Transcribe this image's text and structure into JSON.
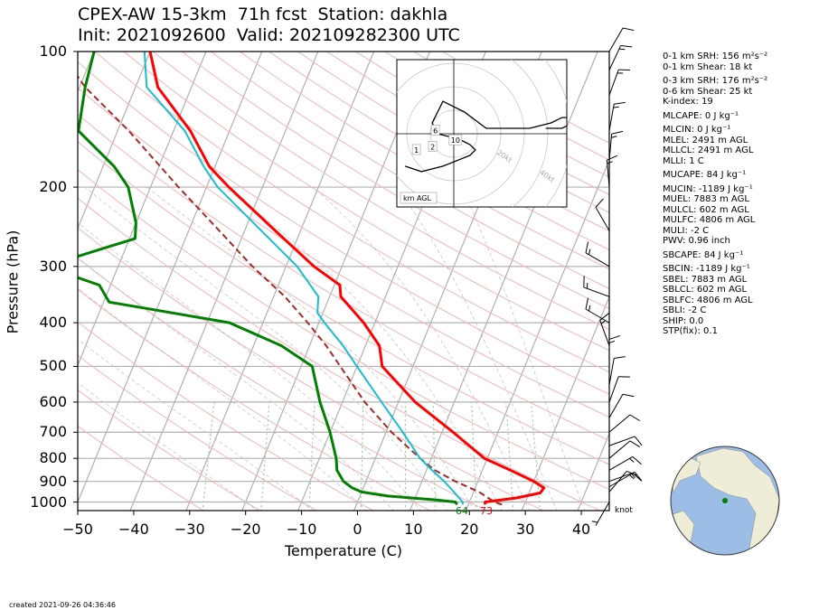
{
  "title": {
    "line1": "CPEX-AW 15-3km  71h fcst  Station: dakhla",
    "line2": "Init: 2021092600  Valid: 202109282300 UTC"
  },
  "footer": "created 2021-09-26 04:36:46",
  "knot_label": "knot",
  "surface_labels": {
    "dewpoint": "64",
    "temperature": "73"
  },
  "hodograph": {
    "unit_label": "km AGL",
    "ring_labels": [
      "20kt",
      "40kt",
      "60kt",
      "80kt"
    ],
    "height_labels": [
      "1",
      "2",
      "6",
      "10"
    ],
    "trace_uv": [
      [
        -9,
        -6
      ],
      [
        -6,
        -7
      ],
      [
        -2,
        -6
      ],
      [
        3,
        -4
      ],
      [
        4,
        -3
      ],
      [
        3,
        -2
      ],
      [
        1,
        -1
      ],
      [
        -3,
        0
      ],
      [
        -4,
        2
      ],
      [
        -2,
        6
      ],
      [
        2,
        4
      ],
      [
        6,
        1
      ],
      [
        11,
        1
      ],
      [
        14,
        1
      ],
      [
        18,
        2
      ],
      [
        20,
        3
      ],
      [
        21,
        3
      ],
      [
        22,
        2
      ],
      [
        20,
        1
      ],
      [
        17,
        1
      ]
    ]
  },
  "stats": [
    "0-1 km SRH: 156 m²s⁻²",
    "0-1 km Shear: 18 kt",
    "0-3 km SRH: 176 m²s⁻²",
    "0-6 km Shear: 25 kt",
    "K-index: 19",
    "MLCAPE: 0 J kg⁻¹",
    "MLCIN: 0 J kg⁻¹",
    "MLEL: 2491 m AGL",
    "MLLCL: 2491 m AGL",
    "MLLI: 1 C",
    "MUCAPE: 84 J kg⁻¹",
    "MUCIN: -1189 J kg⁻¹",
    "MUEL: 7883 m AGL",
    "MULCL: 602 m AGL",
    "MULFC: 4806 m AGL",
    "MULI: -2 C",
    "PWV: 0.96 inch",
    "SBCAPE: 84 J kg⁻¹",
    "SBCIN: -1189 J kg⁻¹",
    "SBEL: 7883 m AGL",
    "SBLCL: 602 m AGL",
    "SBLFC: 4806 m AGL",
    "SBLI: -2 C",
    "SHIP: 0.0",
    "STP(fix): 0.1"
  ],
  "colors": {
    "temperature": "#ff0000",
    "dewpoint": "#008000",
    "wetbulb": "#17becf",
    "parcel": "#a52a2a",
    "isotherm": "#b0b0b0",
    "dry_adiabat": "#f5b5b5",
    "moist_adiabat": "#b0b0b0",
    "mixing_ratio": "#8fcf8f"
  },
  "chart_data": {
    "type": "line",
    "xlabel": "Temperature (C)",
    "ylabel": "Pressure (hPa)",
    "xlim": [
      -50,
      45
    ],
    "ylim": [
      1050,
      100
    ],
    "y_scale": "log",
    "skew": true,
    "grid": true,
    "x_ticks": [
      "−50",
      "−40",
      "−30",
      "−20",
      "−10",
      "0",
      "10",
      "20",
      "30",
      "40"
    ],
    "y_ticks": [
      "100",
      "200",
      "300",
      "400",
      "500",
      "600",
      "700",
      "800",
      "900",
      "1000"
    ],
    "series": [
      {
        "id": "temperature",
        "points": [
          [
            1013,
            23
          ],
          [
            1000,
            22.8
          ],
          [
            980,
            28
          ],
          [
            955,
            32
          ],
          [
            930,
            32.3
          ],
          [
            900,
            30
          ],
          [
            850,
            25
          ],
          [
            800,
            19.5
          ],
          [
            700,
            12
          ],
          [
            600,
            3
          ],
          [
            500,
            -5.5
          ],
          [
            450,
            -7.5
          ],
          [
            400,
            -12
          ],
          [
            350,
            -18
          ],
          [
            330,
            -19
          ],
          [
            300,
            -25
          ],
          [
            250,
            -34.5
          ],
          [
            200,
            -46
          ],
          [
            180,
            -51
          ],
          [
            150,
            -57
          ],
          [
            120,
            -66
          ],
          [
            100,
            -70
          ]
        ]
      },
      {
        "id": "dewpoint",
        "points": [
          [
            1013,
            18
          ],
          [
            1000,
            17.5
          ],
          [
            990,
            14
          ],
          [
            970,
            5
          ],
          [
            950,
            0
          ],
          [
            930,
            -2
          ],
          [
            900,
            -4
          ],
          [
            850,
            -6
          ],
          [
            800,
            -7
          ],
          [
            700,
            -10
          ],
          [
            600,
            -14
          ],
          [
            500,
            -18
          ],
          [
            450,
            -25
          ],
          [
            400,
            -36
          ],
          [
            370,
            -53
          ],
          [
            360,
            -59
          ],
          [
            330,
            -62
          ],
          [
            300,
            -73
          ],
          [
            260,
            -59
          ],
          [
            240,
            -60
          ],
          [
            200,
            -64
          ],
          [
            180,
            -68
          ],
          [
            150,
            -77
          ],
          [
            120,
            -79
          ],
          [
            100,
            -80
          ]
        ]
      },
      {
        "id": "wetbulb",
        "points": [
          [
            1013,
            19
          ],
          [
            1000,
            18.8
          ],
          [
            950,
            16.5
          ],
          [
            900,
            14
          ],
          [
            850,
            11
          ],
          [
            800,
            8
          ],
          [
            700,
            3
          ],
          [
            600,
            -3
          ],
          [
            500,
            -10
          ],
          [
            450,
            -14
          ],
          [
            400,
            -19
          ],
          [
            380,
            -21
          ],
          [
            350,
            -22
          ],
          [
            300,
            -28
          ],
          [
            250,
            -37
          ],
          [
            200,
            -48
          ],
          [
            180,
            -52
          ],
          [
            150,
            -58
          ],
          [
            120,
            -68
          ],
          [
            100,
            -71
          ]
        ]
      },
      {
        "id": "parcel",
        "points": [
          [
            1013,
            26
          ],
          [
            1000,
            24.5
          ],
          [
            950,
            21
          ],
          [
            900,
            16
          ],
          [
            850,
            11.5
          ],
          [
            800,
            8
          ],
          [
            700,
            1
          ],
          [
            600,
            -6
          ],
          [
            500,
            -13
          ],
          [
            450,
            -17
          ],
          [
            400,
            -22
          ],
          [
            350,
            -28
          ],
          [
            300,
            -36
          ],
          [
            250,
            -44.5
          ],
          [
            200,
            -55
          ],
          [
            150,
            -68
          ],
          [
            120,
            -79
          ],
          [
            100,
            -86
          ]
        ]
      }
    ],
    "wind_barbs_kt": [
      {
        "p": 1000,
        "spd": 5,
        "dir": 210
      },
      {
        "p": 950,
        "spd": 10,
        "dir": 40
      },
      {
        "p": 925,
        "spd": 15,
        "dir": 60
      },
      {
        "p": 900,
        "spd": 15,
        "dir": 70
      },
      {
        "p": 850,
        "spd": 15,
        "dir": 60
      },
      {
        "p": 800,
        "spd": 10,
        "dir": 50
      },
      {
        "p": 750,
        "spd": 10,
        "dir": 70
      },
      {
        "p": 700,
        "spd": 10,
        "dir": 50
      },
      {
        "p": 650,
        "spd": 10,
        "dir": 30
      },
      {
        "p": 600,
        "spd": 10,
        "dir": 20
      },
      {
        "p": 550,
        "spd": 10,
        "dir": 10
      },
      {
        "p": 500,
        "spd": 15,
        "dir": 0
      },
      {
        "p": 450,
        "spd": 15,
        "dir": 340
      },
      {
        "p": 400,
        "spd": 15,
        "dir": 300
      },
      {
        "p": 350,
        "spd": 15,
        "dir": 290
      },
      {
        "p": 300,
        "spd": 15,
        "dir": 300
      },
      {
        "p": 250,
        "spd": 10,
        "dir": 330
      },
      {
        "p": 200,
        "spd": 15,
        "dir": 355
      },
      {
        "p": 175,
        "spd": 15,
        "dir": 5
      },
      {
        "p": 150,
        "spd": 15,
        "dir": 10
      },
      {
        "p": 125,
        "spd": 15,
        "dir": 20
      },
      {
        "p": 110,
        "spd": 15,
        "dir": 25
      },
      {
        "p": 100,
        "spd": 10,
        "dir": 30
      }
    ]
  }
}
